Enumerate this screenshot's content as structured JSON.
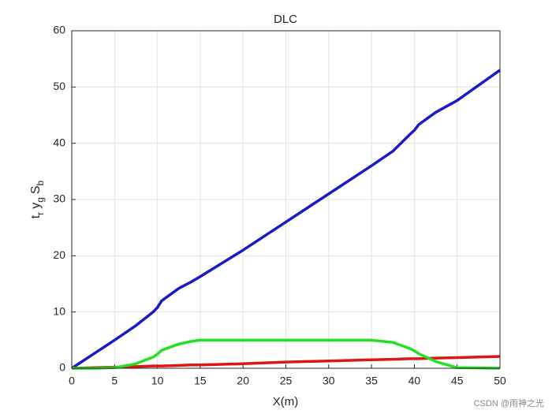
{
  "chart_data": {
    "type": "line",
    "title": "DLC",
    "xlabel": "X(m)",
    "ylabel": {
      "main": [
        "t",
        "y",
        "S"
      ],
      "sub": [
        "r",
        "g",
        "b"
      ]
    },
    "x": [
      0,
      2.5,
      5,
      7.5,
      9.5,
      10,
      10.5,
      12.5,
      14,
      15,
      20,
      25,
      30,
      35,
      37.5,
      39.5,
      40,
      40.5,
      42.5,
      45,
      50
    ],
    "series": [
      {
        "color": "#1a1ac8",
        "values": [
          0,
          2.5,
          5,
          7.6,
          10,
          10.8,
          12,
          14.2,
          15.4,
          16.3,
          21,
          26,
          31,
          36,
          38.6,
          41.6,
          42.3,
          43.3,
          45.5,
          47.6,
          53
        ]
      },
      {
        "color": "#e01515",
        "values": [
          0,
          0.1,
          0.2,
          0.3,
          0.4,
          0.4,
          0.4,
          0.5,
          0.6,
          0.6,
          0.8,
          1.1,
          1.3,
          1.5,
          1.6,
          1.7,
          1.7,
          1.7,
          1.8,
          1.9,
          2.1
        ]
      },
      {
        "color": "#22e022",
        "values": [
          0,
          0,
          0.1,
          0.8,
          2,
          2.5,
          3.2,
          4.3,
          4.8,
          5,
          5,
          5,
          5,
          5,
          4.6,
          3.5,
          3.1,
          2.6,
          1.2,
          0.1,
          0
        ]
      }
    ],
    "xlim": [
      0,
      50
    ],
    "xticks": [
      0,
      5,
      10,
      15,
      20,
      25,
      30,
      35,
      40,
      45,
      50
    ],
    "ylim": [
      0,
      60
    ],
    "yticks": [
      0,
      10,
      20,
      30,
      40,
      50,
      60
    ],
    "grid": true
  },
  "watermark": "CSDN @雨神之光"
}
